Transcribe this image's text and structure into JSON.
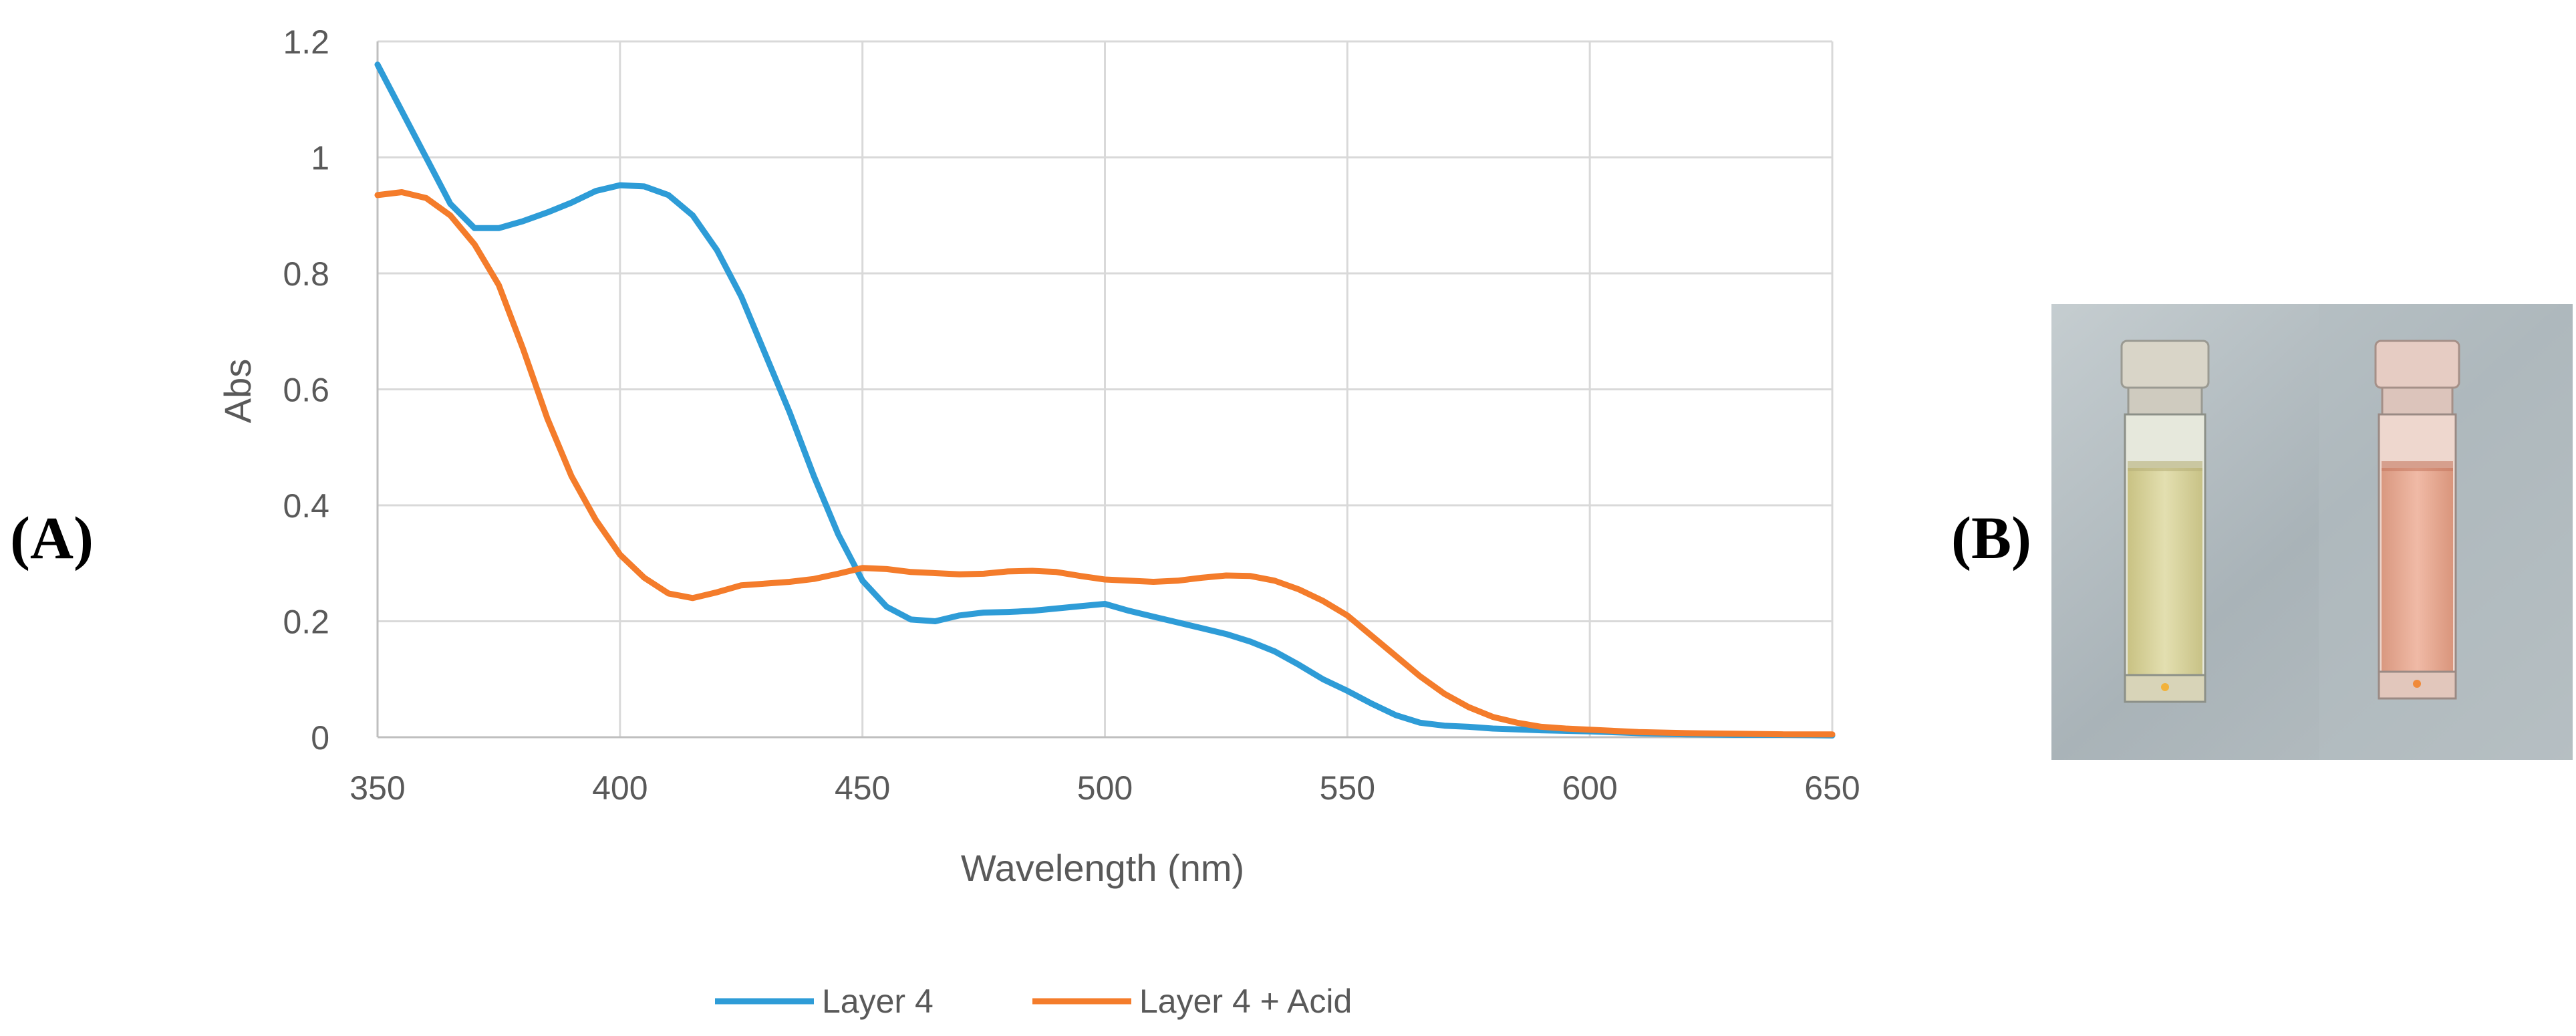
{
  "panel_labels": {
    "a": "(A)",
    "b": "(B)"
  },
  "photo": {
    "description_icon": "cuvette-photo",
    "colors": {
      "left_liquid": "#d9d49a",
      "right_liquid": "#e8a890",
      "background": "#aeb7bb"
    }
  },
  "chart_data": {
    "type": "line",
    "title": "",
    "xlabel": "Wavelength (nm)",
    "ylabel": "Abs",
    "xlim": [
      350,
      650
    ],
    "ylim": [
      0,
      1.2
    ],
    "x_ticks": [
      350,
      400,
      450,
      500,
      550,
      600,
      650
    ],
    "y_ticks": [
      0,
      0.2,
      0.4,
      0.6,
      0.8,
      1.0,
      1.2
    ],
    "x_tick_labels": [
      "350",
      "400",
      "450",
      "500",
      "550",
      "600",
      "650"
    ],
    "y_tick_labels": [
      "0",
      "0.2",
      "0.4",
      "0.6",
      "0.8",
      "1",
      "1.2"
    ],
    "grid": true,
    "legend": "bottom",
    "series": [
      {
        "name": "Layer 4",
        "color": "#2e9cd7",
        "points": [
          [
            350,
            1.16
          ],
          [
            355,
            1.08
          ],
          [
            360,
            1.0
          ],
          [
            365,
            0.92
          ],
          [
            370,
            0.878
          ],
          [
            375,
            0.878
          ],
          [
            380,
            0.89
          ],
          [
            385,
            0.905
          ],
          [
            390,
            0.922
          ],
          [
            395,
            0.942
          ],
          [
            400,
            0.952
          ],
          [
            405,
            0.95
          ],
          [
            410,
            0.935
          ],
          [
            415,
            0.9
          ],
          [
            420,
            0.84
          ],
          [
            425,
            0.76
          ],
          [
            430,
            0.66
          ],
          [
            435,
            0.56
          ],
          [
            440,
            0.45
          ],
          [
            445,
            0.35
          ],
          [
            450,
            0.27
          ],
          [
            455,
            0.225
          ],
          [
            460,
            0.203
          ],
          [
            465,
            0.2
          ],
          [
            470,
            0.21
          ],
          [
            475,
            0.215
          ],
          [
            480,
            0.216
          ],
          [
            485,
            0.218
          ],
          [
            490,
            0.222
          ],
          [
            495,
            0.226
          ],
          [
            500,
            0.23
          ],
          [
            505,
            0.218
          ],
          [
            510,
            0.208
          ],
          [
            515,
            0.198
          ],
          [
            520,
            0.188
          ],
          [
            525,
            0.178
          ],
          [
            530,
            0.165
          ],
          [
            535,
            0.148
          ],
          [
            540,
            0.125
          ],
          [
            545,
            0.1
          ],
          [
            550,
            0.08
          ],
          [
            555,
            0.058
          ],
          [
            560,
            0.038
          ],
          [
            565,
            0.025
          ],
          [
            570,
            0.02
          ],
          [
            575,
            0.018
          ],
          [
            580,
            0.015
          ],
          [
            590,
            0.012
          ],
          [
            600,
            0.01
          ],
          [
            610,
            0.007
          ],
          [
            620,
            0.005
          ],
          [
            630,
            0.004
          ],
          [
            640,
            0.004
          ],
          [
            650,
            0.003
          ]
        ]
      },
      {
        "name": "Layer 4 + Acid",
        "color": "#f47c2b",
        "points": [
          [
            350,
            0.935
          ],
          [
            355,
            0.94
          ],
          [
            360,
            0.93
          ],
          [
            365,
            0.9
          ],
          [
            370,
            0.85
          ],
          [
            375,
            0.78
          ],
          [
            380,
            0.67
          ],
          [
            385,
            0.55
          ],
          [
            390,
            0.45
          ],
          [
            395,
            0.375
          ],
          [
            400,
            0.315
          ],
          [
            405,
            0.275
          ],
          [
            410,
            0.248
          ],
          [
            415,
            0.24
          ],
          [
            420,
            0.25
          ],
          [
            425,
            0.262
          ],
          [
            430,
            0.265
          ],
          [
            435,
            0.268
          ],
          [
            440,
            0.273
          ],
          [
            445,
            0.282
          ],
          [
            450,
            0.292
          ],
          [
            455,
            0.29
          ],
          [
            460,
            0.285
          ],
          [
            465,
            0.283
          ],
          [
            470,
            0.281
          ],
          [
            475,
            0.282
          ],
          [
            480,
            0.286
          ],
          [
            485,
            0.287
          ],
          [
            490,
            0.285
          ],
          [
            495,
            0.278
          ],
          [
            500,
            0.272
          ],
          [
            505,
            0.27
          ],
          [
            510,
            0.268
          ],
          [
            515,
            0.27
          ],
          [
            520,
            0.275
          ],
          [
            525,
            0.279
          ],
          [
            530,
            0.278
          ],
          [
            535,
            0.27
          ],
          [
            540,
            0.255
          ],
          [
            545,
            0.235
          ],
          [
            550,
            0.21
          ],
          [
            555,
            0.175
          ],
          [
            560,
            0.14
          ],
          [
            565,
            0.105
          ],
          [
            570,
            0.075
          ],
          [
            575,
            0.052
          ],
          [
            580,
            0.035
          ],
          [
            585,
            0.025
          ],
          [
            590,
            0.018
          ],
          [
            595,
            0.015
          ],
          [
            600,
            0.013
          ],
          [
            610,
            0.009
          ],
          [
            620,
            0.007
          ],
          [
            630,
            0.006
          ],
          [
            640,
            0.005
          ],
          [
            650,
            0.005
          ]
        ]
      }
    ]
  }
}
